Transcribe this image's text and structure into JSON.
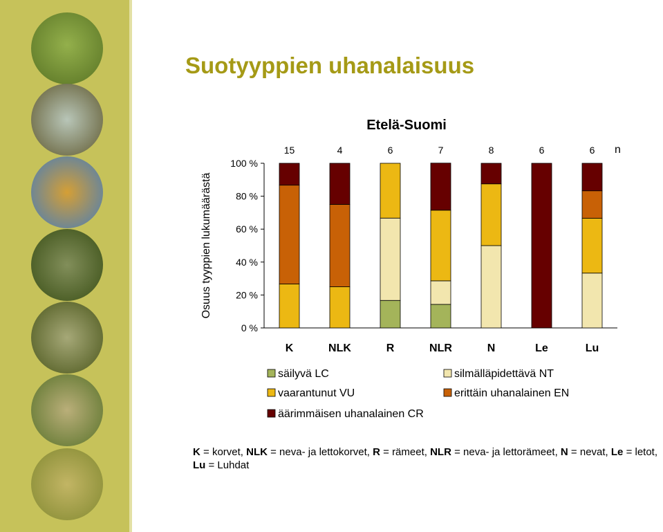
{
  "page": {
    "title": "Suotyyppien uhanalaisuus",
    "footnote": [
      {
        "abbr": "K",
        "text": " = korvet, "
      },
      {
        "abbr": "NLK",
        "text": " = neva- ja lettokorvet, "
      },
      {
        "abbr": "R",
        "text": " = rämeet, "
      },
      {
        "abbr": "NLR",
        "text": " = neva- ja lettorämeet, "
      },
      {
        "abbr": "N",
        "text": " = nevat, "
      },
      {
        "abbr": "Le",
        "text": " = letot, "
      },
      {
        "abbr": "Lu",
        "text": " = Luhdat"
      }
    ]
  },
  "sidebar": {
    "photos": [
      "grass-photo",
      "rocky-shore-photo",
      "water-pools-photo",
      "pine-forest-photo",
      "boulder-forest-photo",
      "cabin-meadow-photo",
      "open-mire-photo"
    ]
  },
  "chart_data": {
    "type": "bar",
    "stacked": true,
    "normalized": true,
    "title": "Etelä-Suomi",
    "ylabel": "Osuus tyyppien lukumäärästä",
    "xlabel": "",
    "ylim": [
      0,
      100
    ],
    "yticks": [
      0,
      20,
      40,
      60,
      80,
      100
    ],
    "ytick_labels": [
      "0 %",
      "20 %",
      "40 %",
      "60 %",
      "80 %",
      "100 %"
    ],
    "categories": [
      "K",
      "NLK",
      "R",
      "NLR",
      "N",
      "Le",
      "Lu"
    ],
    "n_label": "n",
    "n_values": [
      "15",
      "4",
      "6",
      "7",
      "8",
      "6",
      "6"
    ],
    "series": [
      {
        "name": "säilyvä LC",
        "color": "#a4b45a",
        "values": [
          0,
          0,
          16.7,
          14.3,
          0,
          0,
          0
        ]
      },
      {
        "name": "silmälläpidettävä NT",
        "color": "#f2e6ae",
        "values": [
          0,
          0,
          50,
          14.3,
          50,
          0,
          33.3
        ]
      },
      {
        "name": "vaarantunut VU",
        "color": "#ecb813",
        "values": [
          26.7,
          25,
          33.3,
          42.9,
          37.5,
          0,
          33.3
        ]
      },
      {
        "name": "erittäin uhanalainen EN",
        "color": "#c86106",
        "values": [
          60,
          50,
          0,
          0,
          0,
          0,
          16.7
        ]
      },
      {
        "name": "äärimmäisen uhanalainen CR",
        "color": "#660000",
        "values": [
          13.3,
          25,
          0,
          28.6,
          12.5,
          100,
          16.7
        ]
      }
    ],
    "legend_order": [
      0,
      1,
      2,
      3,
      4
    ],
    "legend_position": "bottom",
    "grid": false
  }
}
